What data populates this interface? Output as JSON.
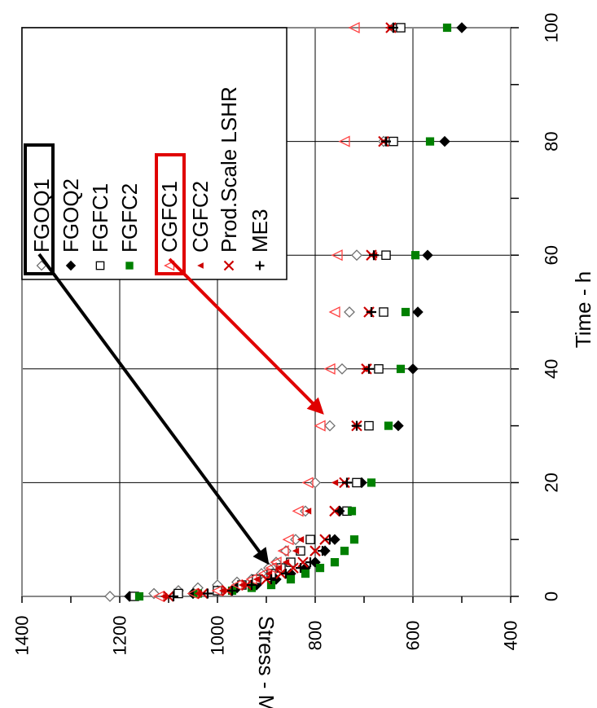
{
  "chart_data": {
    "type": "scatter",
    "orientation": "rotated-90-clockwise",
    "xlabel": "Time - h",
    "ylabel": "Stress - MPa",
    "xlim": [
      0,
      100
    ],
    "ylim": [
      400,
      1400
    ],
    "x_ticks": [
      "0",
      "20",
      "40",
      "60",
      "80",
      "100"
    ],
    "y_ticks": [
      "400",
      "600",
      "800",
      "1000",
      "1200",
      "1400"
    ],
    "grid": true,
    "legend_placement": "top-left",
    "series": [
      {
        "name": "FGOQ1",
        "marker": "open-diamond",
        "color": "#707070",
        "points": [
          [
            0,
            1220
          ],
          [
            0.5,
            1130
          ],
          [
            1,
            1080
          ],
          [
            1.5,
            1040
          ],
          [
            2,
            1000
          ],
          [
            2.5,
            960
          ],
          [
            3,
            930
          ],
          [
            4,
            910
          ],
          [
            5,
            895
          ],
          [
            6,
            880
          ],
          [
            8,
            860
          ],
          [
            10,
            840
          ],
          [
            15,
            820
          ],
          [
            20,
            800
          ],
          [
            30,
            770
          ],
          [
            40,
            745
          ],
          [
            50,
            730
          ],
          [
            60,
            715
          ],
          [
            80,
            660
          ],
          [
            100,
            640
          ]
        ]
      },
      {
        "name": "FGOQ2",
        "marker": "filled-diamond",
        "color": "#000000",
        "points": [
          [
            0,
            1180
          ],
          [
            0.5,
            1050
          ],
          [
            1,
            1000
          ],
          [
            1.5,
            960
          ],
          [
            2,
            920
          ],
          [
            3,
            880
          ],
          [
            4,
            850
          ],
          [
            5,
            820
          ],
          [
            6,
            800
          ],
          [
            8,
            780
          ],
          [
            10,
            760
          ],
          [
            15,
            750
          ],
          [
            20,
            705
          ],
          [
            30,
            630
          ],
          [
            40,
            600
          ],
          [
            50,
            590
          ],
          [
            60,
            570
          ],
          [
            80,
            535
          ],
          [
            100,
            500
          ]
        ]
      },
      {
        "name": "FGFC1",
        "marker": "open-square",
        "color": "#000000",
        "points": [
          [
            0,
            1170
          ],
          [
            0.5,
            1080
          ],
          [
            1,
            1000
          ],
          [
            2,
            950
          ],
          [
            3,
            920
          ],
          [
            4,
            890
          ],
          [
            5,
            870
          ],
          [
            6,
            850
          ],
          [
            8,
            830
          ],
          [
            10,
            810
          ],
          [
            15,
            735
          ],
          [
            20,
            715
          ],
          [
            30,
            690
          ],
          [
            40,
            670
          ],
          [
            50,
            660
          ],
          [
            60,
            655
          ],
          [
            80,
            640
          ],
          [
            100,
            625
          ]
        ]
      },
      {
        "name": "FGFC2",
        "marker": "filled-square",
        "color": "#008000",
        "points": [
          [
            0,
            1160
          ],
          [
            0.5,
            1040
          ],
          [
            1,
            970
          ],
          [
            1.5,
            930
          ],
          [
            2,
            890
          ],
          [
            3,
            850
          ],
          [
            4,
            820
          ],
          [
            5,
            790
          ],
          [
            6,
            760
          ],
          [
            8,
            740
          ],
          [
            10,
            720
          ],
          [
            15,
            725
          ],
          [
            20,
            685
          ],
          [
            30,
            650
          ],
          [
            40,
            625
          ],
          [
            50,
            615
          ],
          [
            60,
            595
          ],
          [
            80,
            565
          ],
          [
            100,
            530
          ]
        ]
      },
      {
        "name": "CGFC1",
        "marker": "open-triangle",
        "color": "#ff4040",
        "points": [
          [
            0,
            1120
          ],
          [
            0.5,
            1050
          ],
          [
            1,
            1000
          ],
          [
            2,
            960
          ],
          [
            3,
            930
          ],
          [
            4,
            905
          ],
          [
            5,
            890
          ],
          [
            6,
            880
          ],
          [
            8,
            865
          ],
          [
            10,
            855
          ],
          [
            15,
            835
          ],
          [
            20,
            815
          ],
          [
            30,
            790
          ],
          [
            40,
            770
          ],
          [
            50,
            760
          ],
          [
            60,
            755
          ],
          [
            80,
            740
          ],
          [
            100,
            720
          ]
        ]
      },
      {
        "name": "CGFC2",
        "marker": "filled-triangle",
        "color": "#cc0000",
        "points": [
          [
            0,
            1110
          ],
          [
            0.5,
            1040
          ],
          [
            1,
            990
          ],
          [
            2,
            950
          ],
          [
            3,
            920
          ],
          [
            4,
            895
          ],
          [
            5,
            875
          ],
          [
            6,
            860
          ],
          [
            8,
            840
          ],
          [
            10,
            830
          ],
          [
            15,
            815
          ],
          [
            20,
            760
          ],
          [
            30,
            720
          ],
          [
            40,
            700
          ],
          [
            50,
            690
          ],
          [
            60,
            680
          ],
          [
            80,
            660
          ],
          [
            100,
            650
          ]
        ]
      },
      {
        "name": "Prod.Scale LSHR",
        "marker": "x",
        "color": "#cc0000",
        "points": [
          [
            0,
            1100
          ],
          [
            0.5,
            1030
          ],
          [
            1,
            980
          ],
          [
            2,
            940
          ],
          [
            3,
            900
          ],
          [
            4,
            870
          ],
          [
            5,
            845
          ],
          [
            6,
            825
          ],
          [
            8,
            800
          ],
          [
            10,
            780
          ],
          [
            15,
            760
          ],
          [
            20,
            740
          ],
          [
            30,
            715
          ],
          [
            40,
            695
          ],
          [
            50,
            690
          ],
          [
            60,
            685
          ],
          [
            80,
            660
          ],
          [
            100,
            645
          ]
        ]
      },
      {
        "name": "ME3",
        "marker": "plus",
        "color": "#000000",
        "points": [
          [
            0,
            1090
          ],
          [
            0.5,
            1020
          ],
          [
            1,
            970
          ],
          [
            2,
            930
          ],
          [
            3,
            890
          ],
          [
            4,
            860
          ],
          [
            5,
            830
          ],
          [
            6,
            810
          ],
          [
            8,
            785
          ],
          [
            10,
            770
          ],
          [
            15,
            750
          ],
          [
            20,
            735
          ],
          [
            30,
            715
          ],
          [
            40,
            690
          ],
          [
            50,
            685
          ],
          [
            60,
            680
          ],
          [
            80,
            655
          ],
          [
            100,
            640
          ]
        ]
      }
    ]
  }
}
